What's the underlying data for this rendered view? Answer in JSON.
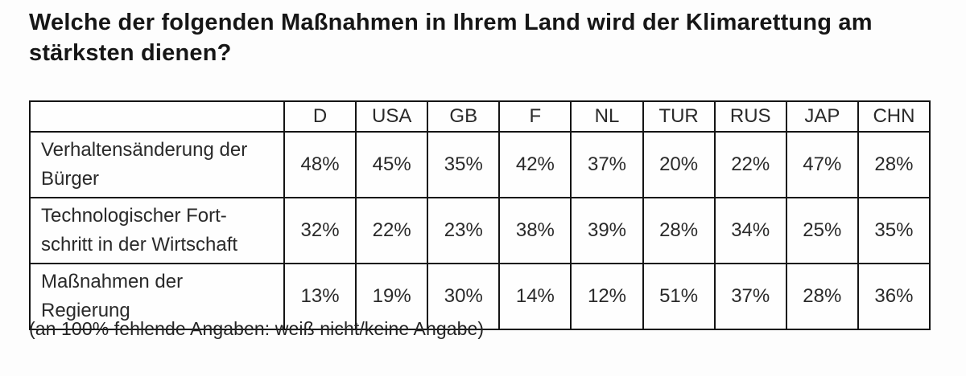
{
  "colors": {
    "text": "#2a2a2a",
    "title": "#161616",
    "border": "#141414",
    "background": "#fdfdfd"
  },
  "chart_data": {
    "type": "table",
    "title": "Welche der folgenden Maßnahmen in Ihrem Land wird der Klimarettung am stärksten dienen?",
    "columns": [
      "D",
      "USA",
      "GB",
      "F",
      "NL",
      "TUR",
      "RUS",
      "JAP",
      "CHN"
    ],
    "rows": [
      {
        "label": "Verhaltensänderung der Bürger",
        "label_lines": [
          "Verhaltensänderung der",
          "Bürger"
        ],
        "values": [
          "48%",
          "45%",
          "35%",
          "42%",
          "37%",
          "20%",
          "22%",
          "47%",
          "28%"
        ]
      },
      {
        "label": "Technologischer Fortschritt in der Wirtschaft",
        "label_lines": [
          "Technologischer Fort-",
          "schritt in der Wirtschaft"
        ],
        "values": [
          "32%",
          "22%",
          "23%",
          "38%",
          "39%",
          "28%",
          "34%",
          "25%",
          "35%"
        ]
      },
      {
        "label": "Maßnahmen der Regierung",
        "label_lines": [
          "Maßnahmen der",
          "Regierung"
        ],
        "values": [
          "13%",
          "19%",
          "30%",
          "14%",
          "12%",
          "51%",
          "37%",
          "28%",
          "36%"
        ]
      }
    ],
    "footnote": "(an 100% fehlende Angaben: weiß nicht/keine Angabe)",
    "units": "percent",
    "legend_position": "none",
    "grid": true
  }
}
